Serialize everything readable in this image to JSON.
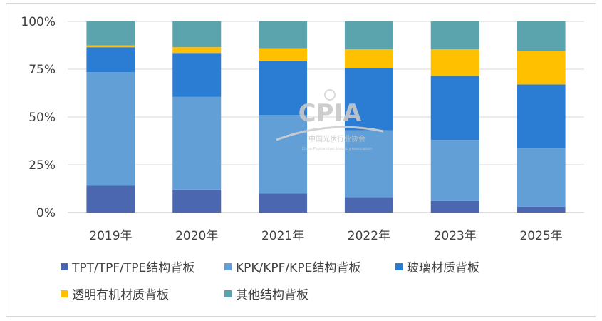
{
  "chart_data": {
    "type": "bar",
    "stacked": "percent",
    "categories": [
      "2019年",
      "2020年",
      "2021年",
      "2022年",
      "2023年",
      "2025年"
    ],
    "series": [
      {
        "name": "TPT/TPF/TPE结构背板",
        "color": "#4a67b0",
        "values": [
          14,
          12,
          10,
          8,
          6,
          3
        ]
      },
      {
        "name": "KPK/KPF/KPE结构背板",
        "color": "#629fd6",
        "values": [
          59.5,
          48.5,
          41,
          35,
          32,
          30.5
        ]
      },
      {
        "name": "玻璃材质背板",
        "color": "#2b7cd3",
        "values": [
          13,
          23,
          28.5,
          32.5,
          33.5,
          33.5
        ]
      },
      {
        "name": "透明有机材质背板",
        "color": "#ffc000",
        "values": [
          1,
          3,
          6.5,
          10,
          14,
          17.5
        ]
      },
      {
        "name": "其他结构背板",
        "color": "#5ba3ad",
        "values": [
          12.5,
          13.5,
          14,
          14.5,
          14.5,
          15.5
        ]
      }
    ],
    "y_ticks": [
      "0%",
      "25%",
      "50%",
      "75%",
      "100%"
    ],
    "ylim": [
      0,
      100
    ],
    "grid": true,
    "legend": "bottom"
  },
  "watermark": {
    "logo": "CPIA",
    "cn": "中国光伏行业协会",
    "en": "China Photovoltaic Industry Association"
  }
}
